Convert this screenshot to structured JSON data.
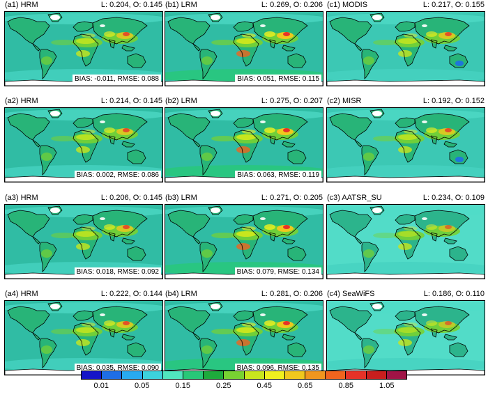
{
  "panels": [
    {
      "label": "(a1) HRM",
      "lo": "L: 0.204, O: 0.145",
      "stats": "BIAS: -0.011, RMSE: 0.088",
      "style": "model",
      "row": 0,
      "col": 0
    },
    {
      "label": "(b1) LRM",
      "lo": "L: 0.269, O: 0.206",
      "stats": "BIAS: 0.051, RMSE: 0.115",
      "style": "lrm",
      "row": 0,
      "col": 1
    },
    {
      "label": "(c1) MODIS",
      "lo": "L: 0.217, O: 0.155",
      "stats": "",
      "style": "sat",
      "row": 0,
      "col": 2
    },
    {
      "label": "(a2) HRM",
      "lo": "L: 0.214, O: 0.145",
      "stats": "BIAS: 0.002, RMSE: 0.086",
      "style": "model",
      "row": 1,
      "col": 0
    },
    {
      "label": "(b2) LRM",
      "lo": "L: 0.275, O: 0.207",
      "stats": "BIAS: 0.063, RMSE: 0.119",
      "style": "lrm",
      "row": 1,
      "col": 1
    },
    {
      "label": "(c2) MISR",
      "lo": "L: 0.192, O: 0.152",
      "stats": "",
      "style": "sat",
      "row": 1,
      "col": 2
    },
    {
      "label": "(a3) HRM",
      "lo": "L: 0.206, O: 0.145",
      "stats": "BIAS: 0.018, RMSE: 0.092",
      "style": "model",
      "row": 2,
      "col": 0
    },
    {
      "label": "(b3) LRM",
      "lo": "L: 0.271, O: 0.205",
      "stats": "BIAS: 0.079, RMSE: 0.134",
      "style": "lrm",
      "row": 2,
      "col": 1
    },
    {
      "label": "(c3) AATSR_SU",
      "lo": "L: 0.234, O: 0.109",
      "stats": "",
      "style": "sat2",
      "row": 2,
      "col": 2
    },
    {
      "label": "(a4) HRM",
      "lo": "L: 0.222, O: 0.144",
      "stats": "BIAS: 0.035, RMSE: 0.090",
      "style": "model",
      "row": 3,
      "col": 0
    },
    {
      "label": "(b4) LRM",
      "lo": "L: 0.281, O: 0.206",
      "stats": "BIAS: 0.096, RMSE: 0.135",
      "style": "lrm",
      "row": 3,
      "col": 1
    },
    {
      "label": "(c4) SeaWiFS",
      "lo": "L: 0.186, O: 0.110",
      "stats": "",
      "style": "sat2",
      "row": 3,
      "col": 2
    }
  ],
  "colorbar": {
    "colors": [
      "#1414c8",
      "#1e6ee6",
      "#28aaf0",
      "#3cd2dc",
      "#50e6be",
      "#28c878",
      "#1eaa3c",
      "#78d232",
      "#c8e61e",
      "#f0f01e",
      "#f0c81e",
      "#f0961e",
      "#f0641e",
      "#e63228",
      "#c81e1e",
      "#a01446"
    ],
    "ticks": [
      "0.01",
      "0.05",
      "0.15",
      "0.25",
      "0.45",
      "0.65",
      "0.85",
      "1.05"
    ]
  }
}
